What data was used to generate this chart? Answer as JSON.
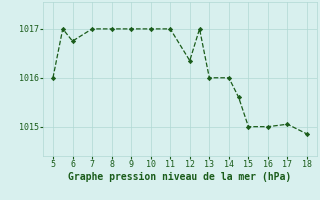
{
  "x": [
    5,
    5.5,
    6,
    7,
    8,
    9,
    10,
    11,
    12,
    12.5,
    13,
    14,
    14.5,
    15,
    16,
    17,
    18
  ],
  "y": [
    1016.0,
    1017.0,
    1016.75,
    1017.0,
    1017.0,
    1017.0,
    1017.0,
    1017.0,
    1016.35,
    1017.0,
    1016.0,
    1016.0,
    1015.6,
    1015.0,
    1015.0,
    1015.05,
    1014.85
  ],
  "line_color": "#1a5c1a",
  "marker_color": "#1a5c1a",
  "bg_color": "#d8f0ee",
  "grid_color": "#b0d8d4",
  "xlabel": "Graphe pression niveau de la mer (hPa)",
  "xlabel_color": "#1a5c1a",
  "xlabel_fontsize": 7,
  "ytick_labels": [
    "1015",
    "1016",
    "1017"
  ],
  "yticks": [
    1015,
    1016,
    1017
  ],
  "xticks": [
    5,
    6,
    7,
    8,
    9,
    10,
    11,
    12,
    13,
    14,
    15,
    16,
    17,
    18
  ],
  "xlim": [
    4.5,
    18.5
  ],
  "ylim": [
    1014.4,
    1017.55
  ]
}
